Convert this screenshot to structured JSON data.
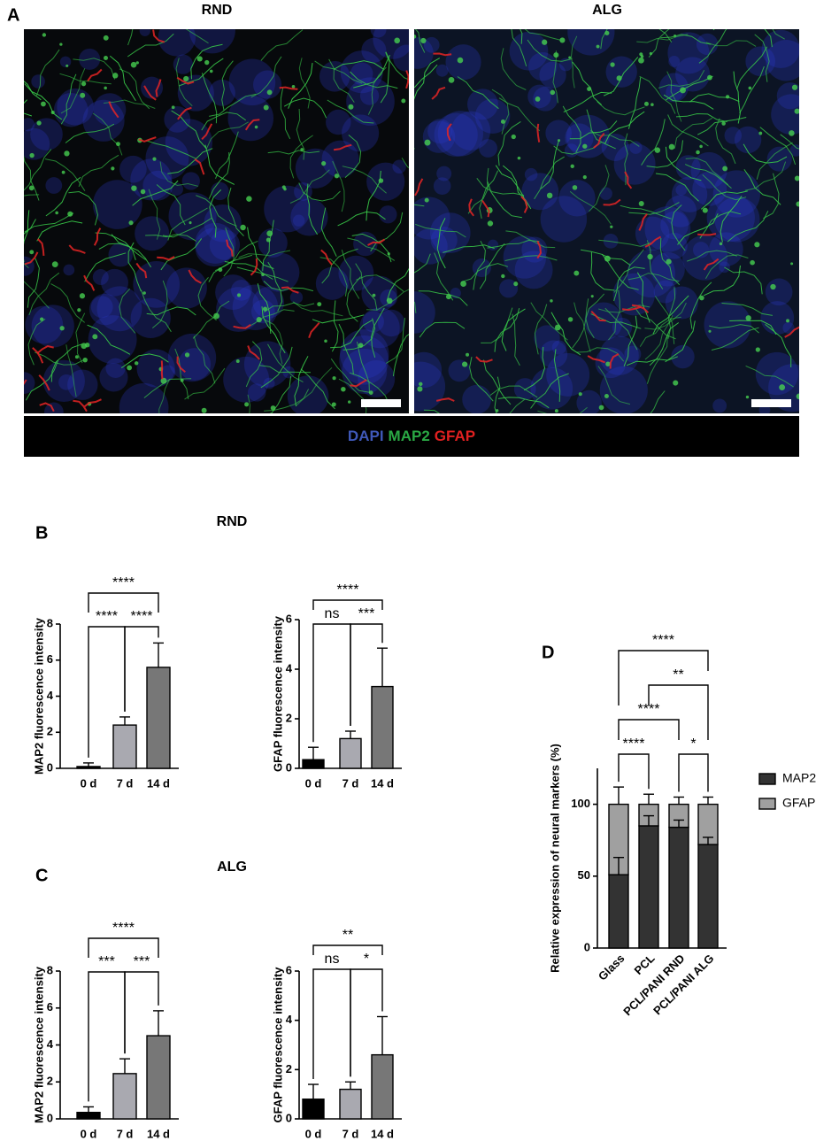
{
  "figure": {
    "panel_labels": [
      "A",
      "B",
      "C",
      "D"
    ],
    "image_titles": [
      "RND",
      "ALG"
    ],
    "row_titles": [
      "RND",
      "ALG"
    ],
    "stain_legend": [
      {
        "name": "DAPI",
        "color": "#3f58b8"
      },
      {
        "name": "MAP2",
        "color": "#2aa844"
      },
      {
        "name": "GFAP",
        "color": "#e02020"
      }
    ]
  },
  "chart_data": [
    {
      "type": "bar",
      "ylabel": "MAP2 fluorescence intensity",
      "categories": [
        "0 d",
        "7 d",
        "14 d"
      ],
      "values": [
        0.1,
        2.4,
        5.6
      ],
      "errors": [
        0.2,
        0.45,
        1.35
      ],
      "colors": [
        "#000000",
        "#a9a9b0",
        "#777777"
      ],
      "ylim": [
        0,
        8
      ],
      "yticks": [
        0,
        2,
        4,
        6,
        8
      ],
      "significance": [
        {
          "from": "0 d",
          "to": "7 d",
          "label": "****"
        },
        {
          "from": "7 d",
          "to": "14 d",
          "label": "****"
        },
        {
          "from": "0 d",
          "to": "14 d",
          "label": "****"
        }
      ]
    },
    {
      "type": "bar",
      "ylabel": "GFAP fluorescence intensity",
      "categories": [
        "0 d",
        "7 d",
        "14 d"
      ],
      "values": [
        0.35,
        1.2,
        3.3
      ],
      "errors": [
        0.5,
        0.3,
        1.55
      ],
      "colors": [
        "#000000",
        "#a9a9b0",
        "#777777"
      ],
      "ylim": [
        0,
        6
      ],
      "yticks": [
        0,
        2,
        4,
        6
      ],
      "significance": [
        {
          "from": "0 d",
          "to": "7 d",
          "label": "ns"
        },
        {
          "from": "7 d",
          "to": "14 d",
          "label": "***"
        },
        {
          "from": "0 d",
          "to": "14 d",
          "label": "****"
        }
      ]
    },
    {
      "type": "bar",
      "ylabel": "MAP2 fluorescence intensity",
      "categories": [
        "0 d",
        "7 d",
        "14 d"
      ],
      "values": [
        0.35,
        2.45,
        4.5
      ],
      "errors": [
        0.3,
        0.8,
        1.35
      ],
      "colors": [
        "#000000",
        "#a9a9b0",
        "#777777"
      ],
      "ylim": [
        0,
        8
      ],
      "yticks": [
        0,
        2,
        4,
        6,
        8
      ],
      "significance": [
        {
          "from": "0 d",
          "to": "7 d",
          "label": "***"
        },
        {
          "from": "7 d",
          "to": "14 d",
          "label": "***"
        },
        {
          "from": "0 d",
          "to": "14 d",
          "label": "****"
        }
      ]
    },
    {
      "type": "bar",
      "ylabel": "GFAP fluorescence intensity",
      "categories": [
        "0 d",
        "7 d",
        "14 d"
      ],
      "values": [
        0.8,
        1.2,
        2.6
      ],
      "errors": [
        0.6,
        0.3,
        1.55
      ],
      "colors": [
        "#000000",
        "#a9a9b0",
        "#777777"
      ],
      "ylim": [
        0,
        6
      ],
      "yticks": [
        0,
        2,
        4,
        6
      ],
      "significance": [
        {
          "from": "0 d",
          "to": "7 d",
          "label": "ns"
        },
        {
          "from": "7 d",
          "to": "14 d",
          "label": "*"
        },
        {
          "from": "0 d",
          "to": "14 d",
          "label": "**"
        }
      ]
    },
    {
      "type": "stacked_bar",
      "ylabel": "Relative expression of neural markers (%)",
      "categories": [
        "Glass",
        "PCL",
        "PCL/PANI RND",
        "PCL/PANI ALG"
      ],
      "series": [
        {
          "name": "MAP2",
          "color": "#333333",
          "values": [
            51,
            85,
            84,
            72
          ],
          "errors": [
            12,
            7,
            5,
            5
          ]
        },
        {
          "name": "GFAP",
          "color": "#a0a0a0",
          "values": [
            49,
            15,
            16,
            28
          ],
          "errors": [
            12,
            7,
            5,
            5
          ]
        }
      ],
      "ylim": [
        0,
        125
      ],
      "yticks": [
        0,
        50,
        100
      ],
      "legend": "right",
      "significance": [
        {
          "from": "Glass",
          "to": "PCL",
          "label": "****"
        },
        {
          "from": "PCL/PANI RND",
          "to": "PCL/PANI ALG",
          "label": "*"
        },
        {
          "from": "Glass",
          "to": "PCL/PANI RND",
          "label": "****"
        },
        {
          "from": "PCL",
          "to": "PCL/PANI ALG",
          "label": "**"
        },
        {
          "from": "Glass",
          "to": "PCL/PANI ALG",
          "label": "****"
        }
      ]
    }
  ]
}
